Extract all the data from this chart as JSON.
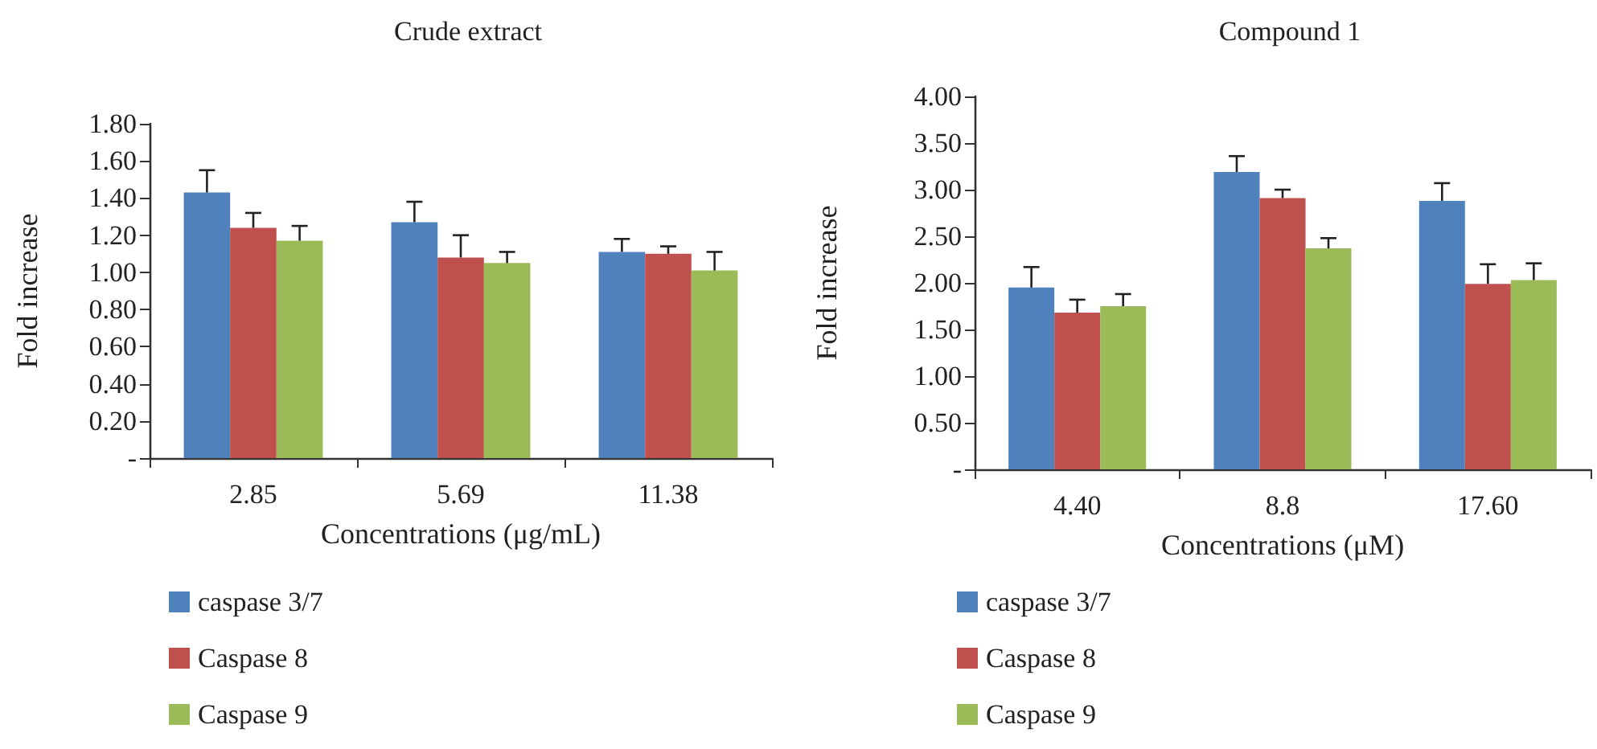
{
  "chart_data": [
    {
      "type": "bar",
      "title": "Crude extract",
      "xlabel": "Concentrations (μg/mL)",
      "ylabel": "Fold increase",
      "categories": [
        "2.85",
        "5.69",
        "11.38"
      ],
      "series": [
        {
          "name": "caspase 3/7",
          "color": "#4f81bd",
          "values": [
            1.43,
            1.27,
            1.11
          ],
          "errors": [
            [
              1.43,
              1.55
            ],
            [
              1.27,
              1.38
            ],
            [
              1.11,
              1.18
            ]
          ]
        },
        {
          "name": "Caspase 8",
          "color": "#c0504d",
          "values": [
            1.24,
            1.08,
            1.1
          ],
          "errors": [
            [
              1.24,
              1.32
            ],
            [
              1.08,
              1.2
            ],
            [
              1.1,
              1.14
            ]
          ]
        },
        {
          "name": "Caspase 9",
          "color": "#9bbb59",
          "values": [
            1.17,
            1.05,
            1.01
          ],
          "errors": [
            [
              1.17,
              1.25
            ],
            [
              1.05,
              1.11
            ],
            [
              1.01,
              1.11
            ]
          ]
        }
      ],
      "ylim": [
        0,
        1.8
      ],
      "yticks": [
        {
          "value": 0,
          "label": "-"
        },
        {
          "value": 0.2,
          "label": "0.20"
        },
        {
          "value": 0.4,
          "label": "0.40"
        },
        {
          "value": 0.6,
          "label": "0.60"
        },
        {
          "value": 0.8,
          "label": "0.80"
        },
        {
          "value": 1.0,
          "label": "1.00"
        },
        {
          "value": 1.2,
          "label": "1.20"
        },
        {
          "value": 1.4,
          "label": "1.40"
        },
        {
          "value": 1.6,
          "label": "1.60"
        },
        {
          "value": 1.8,
          "label": "1.80"
        }
      ],
      "grid": false,
      "legend": "bottom left"
    },
    {
      "type": "bar",
      "title": "Compound 1",
      "xlabel": "Concentrations (μM)",
      "ylabel": "Fold increase",
      "categories": [
        "4.40",
        "8.8",
        "17.60"
      ],
      "series": [
        {
          "name": "caspase 3/7",
          "color": "#4f81bd",
          "values": [
            1.95,
            3.19,
            2.88
          ],
          "errors": [
            [
              1.95,
              2.17
            ],
            [
              3.19,
              3.36
            ],
            [
              2.88,
              3.07
            ]
          ]
        },
        {
          "name": "Caspase 8",
          "color": "#c0504d",
          "values": [
            1.68,
            2.91,
            1.99
          ],
          "errors": [
            [
              1.68,
              1.82
            ],
            [
              2.91,
              3.0
            ],
            [
              1.99,
              2.2
            ]
          ]
        },
        {
          "name": "Caspase 9",
          "color": "#9bbb59",
          "values": [
            1.75,
            2.37,
            2.03
          ],
          "errors": [
            [
              1.75,
              1.88
            ],
            [
              2.37,
              2.48
            ],
            [
              2.03,
              2.21
            ]
          ]
        }
      ],
      "ylim": [
        0,
        4
      ],
      "yticks": [
        {
          "value": 0,
          "label": "-"
        },
        {
          "value": 0.5,
          "label": "0.50"
        },
        {
          "value": 1.0,
          "label": "1.00"
        },
        {
          "value": 1.5,
          "label": "1.50"
        },
        {
          "value": 2.0,
          "label": "2.00"
        },
        {
          "value": 2.5,
          "label": "2.50"
        },
        {
          "value": 3.0,
          "label": "3.00"
        },
        {
          "value": 3.5,
          "label": "3.50"
        },
        {
          "value": 4.0,
          "label": "4.00"
        }
      ],
      "grid": false,
      "legend": "bottom left"
    }
  ]
}
